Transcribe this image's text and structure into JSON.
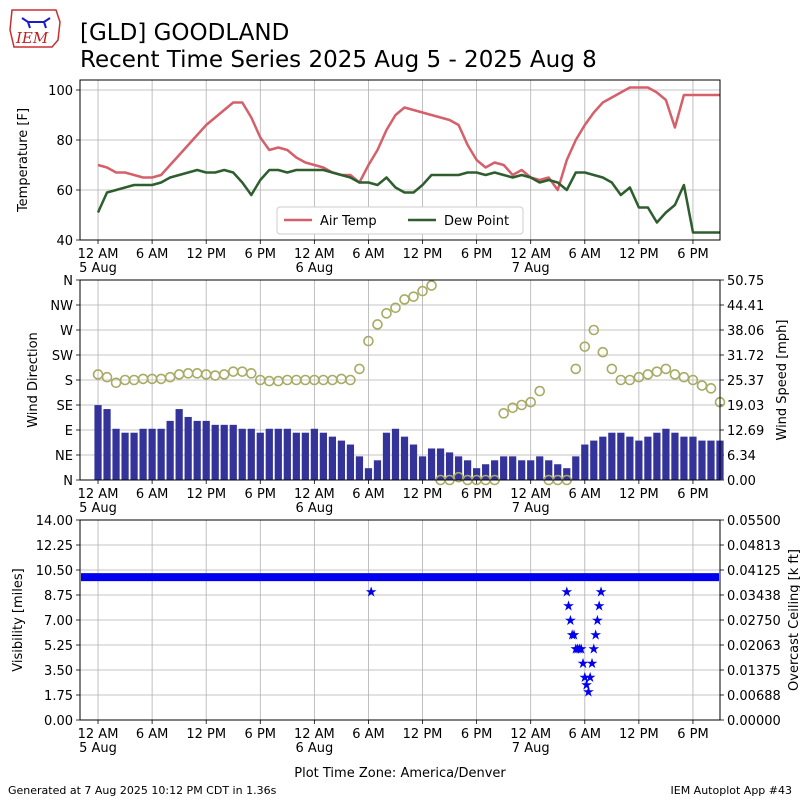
{
  "header": {
    "logo_text": "IEM",
    "title_line1": "[GLD] GOODLAND",
    "title_line2": "Recent Time Series 2025 Aug 5 - 2025 Aug 8"
  },
  "footer": {
    "left": "Generated at 7 Aug 2025 10:12 PM CDT in 1.36s",
    "right": "IEM Autoplot App #43"
  },
  "xaxis": {
    "label": "Plot Time Zone: America/Denver",
    "range_hours": [
      -2,
      69
    ],
    "ticks": [
      {
        "hour": 0,
        "label": "12 AM",
        "date": "5 Aug"
      },
      {
        "hour": 6,
        "label": "6 AM",
        "date": ""
      },
      {
        "hour": 12,
        "label": "12 PM",
        "date": ""
      },
      {
        "hour": 18,
        "label": "6 PM",
        "date": ""
      },
      {
        "hour": 24,
        "label": "12 AM",
        "date": "6 Aug"
      },
      {
        "hour": 30,
        "label": "6 AM",
        "date": ""
      },
      {
        "hour": 36,
        "label": "12 PM",
        "date": ""
      },
      {
        "hour": 42,
        "label": "6 PM",
        "date": ""
      },
      {
        "hour": 48,
        "label": "12 AM",
        "date": "7 Aug"
      },
      {
        "hour": 54,
        "label": "6 AM",
        "date": ""
      },
      {
        "hour": 60,
        "label": "12 PM",
        "date": ""
      },
      {
        "hour": 66,
        "label": "6 PM",
        "date": ""
      }
    ]
  },
  "colors": {
    "air_temp": "#d6606a",
    "dew_point": "#2e5e2e",
    "wind_speed": "#33339a",
    "wind_gust": "#8c8cf0",
    "wind_dir": "#a8ab64",
    "visibility": "#0000ee",
    "grid": "#b0b0b0"
  },
  "chart_data": [
    {
      "type": "line",
      "ylabel": "Temperature [F]",
      "ylim": [
        40,
        104
      ],
      "yticks": [
        40,
        60,
        80,
        100
      ],
      "grid": true,
      "legend_placement": "lower-center",
      "series": [
        {
          "name": "Air Temp",
          "x": [
            0,
            1,
            2,
            3,
            4,
            5,
            6,
            7,
            8,
            9,
            10,
            11,
            12,
            13,
            14,
            15,
            16,
            17,
            18,
            19,
            20,
            21,
            22,
            23,
            24,
            25,
            26,
            27,
            28,
            29,
            30,
            31,
            32,
            33,
            34,
            35,
            36,
            37,
            38,
            39,
            40,
            41,
            42,
            43,
            44,
            45,
            46,
            47,
            48,
            49,
            50,
            51,
            52,
            53,
            54,
            55,
            56,
            57,
            58,
            59,
            60,
            61,
            62,
            63,
            64,
            65,
            66,
            67,
            68,
            69
          ],
          "values": [
            70,
            69,
            67,
            67,
            66,
            65,
            65,
            66,
            70,
            74,
            78,
            82,
            86,
            89,
            92,
            95,
            95,
            89,
            81,
            76,
            77,
            76,
            73,
            71,
            70,
            69,
            67,
            66,
            66,
            63,
            70,
            76,
            84,
            90,
            93,
            92,
            91,
            90,
            89,
            88,
            86,
            78,
            72,
            69,
            71,
            70,
            66,
            68,
            65,
            64,
            65,
            60,
            72,
            80,
            86,
            91,
            95,
            97,
            99,
            101,
            101,
            101,
            99,
            96,
            85,
            98,
            98,
            98,
            98,
            98
          ]
        },
        {
          "name": "Dew Point",
          "x": [
            0,
            1,
            2,
            3,
            4,
            5,
            6,
            7,
            8,
            9,
            10,
            11,
            12,
            13,
            14,
            15,
            16,
            17,
            18,
            19,
            20,
            21,
            22,
            23,
            24,
            25,
            26,
            27,
            28,
            29,
            30,
            31,
            32,
            33,
            34,
            35,
            36,
            37,
            38,
            39,
            40,
            41,
            42,
            43,
            44,
            45,
            46,
            47,
            48,
            49,
            50,
            51,
            52,
            53,
            54,
            55,
            56,
            57,
            58,
            59,
            60,
            61,
            62,
            63,
            64,
            65,
            66,
            67,
            68,
            69
          ],
          "values": [
            51,
            59,
            60,
            61,
            62,
            62,
            62,
            63,
            65,
            66,
            67,
            68,
            67,
            67,
            68,
            67,
            63,
            58,
            64,
            68,
            68,
            67,
            68,
            68,
            68,
            68,
            67,
            66,
            65,
            63,
            63,
            62,
            65,
            61,
            59,
            59,
            62,
            66,
            66,
            66,
            66,
            67,
            67,
            66,
            67,
            66,
            65,
            66,
            65,
            63,
            64,
            63,
            60,
            67,
            67,
            66,
            65,
            63,
            58,
            61,
            53,
            53,
            47,
            51,
            54,
            62,
            43,
            43,
            43,
            43
          ]
        }
      ]
    },
    {
      "type": "bar",
      "ylabel": "Wind Direction",
      "ylabel2": "Wind Speed [mph]",
      "ylim_dir": [
        0,
        360
      ],
      "ylim_speed": [
        0,
        50.75
      ],
      "dir_ticks": [
        "N",
        "NE",
        "E",
        "SE",
        "S",
        "SW",
        "W",
        "NW",
        "N"
      ],
      "speed_ticks": [
        0.0,
        6.34,
        12.69,
        19.03,
        25.37,
        31.72,
        38.06,
        44.41,
        50.75
      ],
      "grid": true,
      "series": [
        {
          "name": "Wind Speed",
          "x": [
            0,
            1,
            2,
            3,
            4,
            5,
            6,
            7,
            8,
            9,
            10,
            11,
            12,
            13,
            14,
            15,
            16,
            17,
            18,
            19,
            20,
            21,
            22,
            23,
            24,
            25,
            26,
            27,
            28,
            29,
            30,
            31,
            32,
            33,
            34,
            35,
            36,
            37,
            38,
            39,
            40,
            41,
            42,
            43,
            44,
            45,
            46,
            47,
            48,
            49,
            50,
            51,
            52,
            53,
            54,
            55,
            56,
            57,
            58,
            59,
            60,
            61,
            62,
            63,
            64,
            65,
            66,
            67,
            68,
            69
          ],
          "values": [
            19,
            18,
            13,
            12,
            12,
            13,
            13,
            13,
            15,
            18,
            16,
            15,
            15,
            14,
            14,
            14,
            13,
            13,
            12,
            13,
            13,
            13,
            12,
            12,
            13,
            12,
            11,
            10,
            9,
            6,
            3,
            5,
            12,
            13,
            11,
            9,
            6,
            8,
            8,
            7,
            6,
            5,
            3,
            4,
            5,
            6,
            6,
            5,
            5,
            6,
            5,
            4,
            3,
            6,
            9,
            10,
            11,
            12,
            12,
            11,
            10,
            11,
            12,
            13,
            12,
            11,
            11,
            10,
            10,
            10
          ]
        },
        {
          "name": "Wind Direction",
          "x": [
            0,
            1,
            2,
            3,
            4,
            5,
            6,
            7,
            8,
            9,
            10,
            11,
            12,
            13,
            14,
            15,
            16,
            17,
            18,
            19,
            20,
            21,
            22,
            23,
            24,
            25,
            26,
            27,
            28,
            29,
            30,
            31,
            32,
            33,
            34,
            35,
            36,
            37,
            38,
            39,
            40,
            41,
            42,
            43,
            44,
            45,
            46,
            47,
            48,
            49,
            50,
            51,
            52,
            53,
            54,
            55,
            56,
            57,
            58,
            59,
            60,
            61,
            62,
            63,
            64,
            65,
            66,
            67,
            68,
            69
          ],
          "values": [
            190,
            185,
            175,
            180,
            180,
            182,
            182,
            182,
            185,
            190,
            192,
            192,
            190,
            188,
            190,
            195,
            195,
            192,
            180,
            178,
            178,
            180,
            180,
            180,
            180,
            180,
            180,
            182,
            180,
            200,
            250,
            280,
            300,
            310,
            325,
            330,
            340,
            350,
            0,
            0,
            5,
            0,
            0,
            0,
            0,
            120,
            130,
            135,
            140,
            160,
            0,
            0,
            0,
            200,
            240,
            270,
            230,
            200,
            180,
            180,
            185,
            190,
            195,
            200,
            190,
            185,
            180,
            170,
            165,
            140
          ]
        }
      ]
    },
    {
      "type": "scatter",
      "ylabel": "Visibility [miles]",
      "ylabel2": "Overcast Ceiling [k ft]",
      "ylim": [
        0,
        14
      ],
      "ylim2": [
        0,
        0.055
      ],
      "yticks": [
        0.0,
        1.75,
        3.5,
        5.25,
        7.0,
        8.75,
        10.5,
        12.25,
        14.0
      ],
      "yticks2": [
        0.0,
        0.00688,
        0.01375,
        0.02063,
        0.0275,
        0.03438,
        0.04125,
        0.04813,
        0.055
      ],
      "grid": true,
      "series": [
        {
          "name": "Visibility",
          "x": [
            30.3,
            52.0,
            52.2,
            52.4,
            52.6,
            52.8,
            53.0,
            53.2,
            53.4,
            53.6,
            53.8,
            54.0,
            54.2,
            54.4,
            54.6,
            54.8,
            55.0,
            55.2,
            55.4,
            55.6,
            55.8
          ],
          "values": [
            9.0,
            9.0,
            8.0,
            7.0,
            6.0,
            6.0,
            5.0,
            5.0,
            5.0,
            5.0,
            4.0,
            3.0,
            2.5,
            2.0,
            3.0,
            4.0,
            5.0,
            6.0,
            7.0,
            8.0,
            9.0
          ]
        }
      ]
    }
  ]
}
